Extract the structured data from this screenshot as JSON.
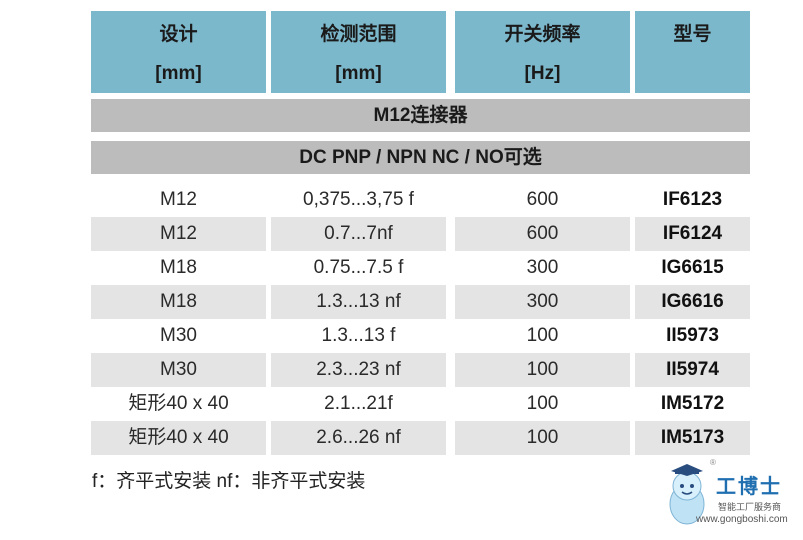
{
  "headers": [
    {
      "line1": "设计",
      "line2": "[mm]"
    },
    {
      "line1": "检测范围",
      "line2": "[mm]"
    },
    {
      "line1": "开关频率",
      "line2": "[Hz]"
    },
    {
      "line1": "型号",
      "line2": ""
    }
  ],
  "section_title": "M12连接器",
  "subsection_title": "DC PNP / NPN NC / NO可选",
  "rows": [
    {
      "design": "M12",
      "range": "0,375...3,75 f",
      "freq": "600",
      "model": "IF6123"
    },
    {
      "design": "M12",
      "range": "0.7...7nf",
      "freq": "600",
      "model": "IF6124"
    },
    {
      "design": "M18",
      "range": "0.75...7.5 f",
      "freq": "300",
      "model": "IG6615"
    },
    {
      "design": "M18",
      "range": "1.3...13 nf",
      "freq": "300",
      "model": "IG6616"
    },
    {
      "design": "M30",
      "range": "1.3...13 f",
      "freq": "100",
      "model": "II5973"
    },
    {
      "design": "M30",
      "range": "2.3...23 nf",
      "freq": "100",
      "model": "II5974"
    },
    {
      "design": "矩形40 x 40",
      "range": "2.1...21f",
      "freq": "100",
      "model": "IM5172"
    },
    {
      "design": "矩形40 x 40",
      "range": "2.6...26 nf",
      "freq": "100",
      "model": "IM5173"
    }
  ],
  "footnote": "f：齐平式安装  nf：非齐平式安装",
  "logo": {
    "brand": "工博士",
    "slogan": "智能工厂服务商",
    "url": "www.gongboshi.com",
    "reg": "®"
  },
  "colors": {
    "header_bg": "#7cb8cc",
    "band_bg": "#bcbcbc",
    "row_shade": "#e4e4e4",
    "brand": "#1f6fb0"
  }
}
